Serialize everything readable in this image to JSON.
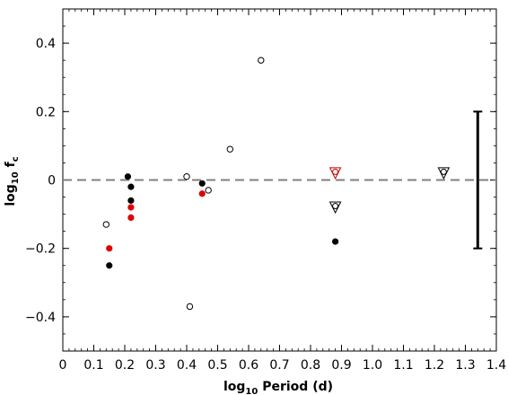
{
  "chart_data": {
    "type": "scatter",
    "title": "",
    "xlabel": {
      "base": "log",
      "sub": "10",
      "text": " Period (d)"
    },
    "ylabel": {
      "base": "log",
      "sub": "10",
      "text": " f",
      "text_sub": "c"
    },
    "xlim": [
      0,
      1.4
    ],
    "ylim": [
      -0.5,
      0.5
    ],
    "xticks": [
      0,
      0.1,
      0.2,
      0.3,
      0.4,
      0.5,
      0.6,
      0.7,
      0.8,
      0.9,
      1.0,
      1.1,
      1.2,
      1.3,
      1.4
    ],
    "xtick_labels": [
      "0",
      "0.1",
      "0.2",
      "0.3",
      "0.4",
      "0.5",
      "0.6",
      "0.7",
      "0.8",
      "0.9",
      "1.0",
      "1.1",
      "1.2",
      "1.3",
      "1.4"
    ],
    "yticks": [
      0.4,
      0.2,
      0,
      -0.2,
      -0.4
    ],
    "ytick_labels": [
      "0.4",
      "0.2",
      "0",
      "−0.2",
      "−0.4"
    ],
    "grid": false,
    "reference_line": {
      "y": 0,
      "style": "dashed",
      "color": "#808080"
    },
    "series": [
      {
        "marker": "filled-circle",
        "color": "#000000",
        "points": [
          {
            "x": 0.15,
            "y": -0.25
          },
          {
            "x": 0.21,
            "y": 0.01
          },
          {
            "x": 0.22,
            "y": -0.02
          },
          {
            "x": 0.22,
            "y": -0.06
          },
          {
            "x": 0.45,
            "y": -0.01
          },
          {
            "x": 0.88,
            "y": -0.18
          }
        ]
      },
      {
        "marker": "filled-circle",
        "color": "#e00000",
        "points": [
          {
            "x": 0.15,
            "y": -0.2
          },
          {
            "x": 0.22,
            "y": -0.08
          },
          {
            "x": 0.22,
            "y": -0.11
          },
          {
            "x": 0.45,
            "y": -0.04
          }
        ]
      },
      {
        "marker": "open-circle",
        "color": "#000000",
        "points": [
          {
            "x": 0.14,
            "y": -0.13
          },
          {
            "x": 0.4,
            "y": 0.01
          },
          {
            "x": 0.41,
            "y": -0.37
          },
          {
            "x": 0.47,
            "y": -0.03
          },
          {
            "x": 0.54,
            "y": 0.09
          },
          {
            "x": 0.64,
            "y": 0.35
          }
        ]
      },
      {
        "marker": "open-circle-in-triangle",
        "color": "#000000",
        "points": [
          {
            "x": 0.88,
            "y": -0.08
          },
          {
            "x": 1.23,
            "y": 0.02
          }
        ]
      },
      {
        "marker": "open-circle-in-triangle",
        "color": "#cc0000",
        "points": [
          {
            "x": 0.88,
            "y": 0.02
          }
        ]
      }
    ],
    "error_bar": {
      "x": 1.34,
      "y_low": -0.2,
      "y_high": 0.2,
      "color": "#000000"
    }
  }
}
